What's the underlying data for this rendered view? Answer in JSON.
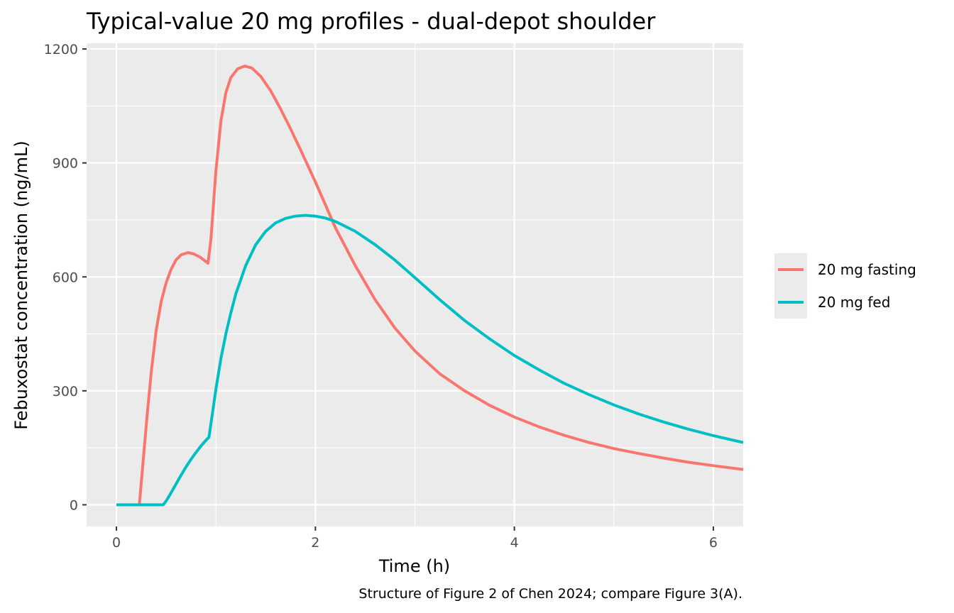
{
  "chart_data": {
    "type": "line",
    "title": "Typical-value 20 mg profiles - dual-depot shoulder",
    "xlabel": "Time (h)",
    "ylabel": "Febuxostat concentration (ng/mL)",
    "caption": "Structure of Figure 2 of Chen 2024; compare Figure 3(A).",
    "xlim": [
      -0.3,
      6.3
    ],
    "ylim": [
      -57,
      1215
    ],
    "x_ticks": [
      0,
      2,
      4,
      6
    ],
    "y_ticks": [
      0,
      300,
      600,
      900,
      1200
    ],
    "grid": true,
    "panel_background": "#EBEBEB",
    "legend_position": "right",
    "series": [
      {
        "name": "20 mg fasting",
        "color": "#F8766D",
        "points": [
          [
            0,
            0
          ],
          [
            0.23,
            0
          ],
          [
            0.27,
            120
          ],
          [
            0.31,
            240
          ],
          [
            0.35,
            350
          ],
          [
            0.4,
            460
          ],
          [
            0.45,
            535
          ],
          [
            0.5,
            585
          ],
          [
            0.55,
            620
          ],
          [
            0.6,
            645
          ],
          [
            0.65,
            658
          ],
          [
            0.72,
            664
          ],
          [
            0.78,
            660
          ],
          [
            0.84,
            652
          ],
          [
            0.9,
            640
          ],
          [
            0.92,
            636
          ],
          [
            0.95,
            700
          ],
          [
            1.0,
            880
          ],
          [
            1.05,
            1010
          ],
          [
            1.1,
            1085
          ],
          [
            1.15,
            1125
          ],
          [
            1.22,
            1148
          ],
          [
            1.29,
            1155
          ],
          [
            1.36,
            1150
          ],
          [
            1.45,
            1128
          ],
          [
            1.55,
            1090
          ],
          [
            1.65,
            1042
          ],
          [
            1.75,
            990
          ],
          [
            1.85,
            935
          ],
          [
            2.0,
            850
          ],
          [
            2.2,
            730
          ],
          [
            2.4,
            630
          ],
          [
            2.6,
            540
          ],
          [
            2.8,
            465
          ],
          [
            3.0,
            405
          ],
          [
            3.25,
            345
          ],
          [
            3.5,
            300
          ],
          [
            3.75,
            262
          ],
          [
            4.0,
            231
          ],
          [
            4.25,
            205
          ],
          [
            4.5,
            183
          ],
          [
            4.75,
            164
          ],
          [
            5.0,
            148
          ],
          [
            5.25,
            135
          ],
          [
            5.5,
            123
          ],
          [
            5.75,
            112
          ],
          [
            6.0,
            103
          ],
          [
            6.3,
            93
          ]
        ]
      },
      {
        "name": "20 mg fed",
        "color": "#00BFC4",
        "points": [
          [
            0,
            0
          ],
          [
            0.47,
            0
          ],
          [
            0.5,
            10
          ],
          [
            0.55,
            32
          ],
          [
            0.6,
            55
          ],
          [
            0.65,
            78
          ],
          [
            0.7,
            100
          ],
          [
            0.75,
            120
          ],
          [
            0.8,
            138
          ],
          [
            0.85,
            155
          ],
          [
            0.9,
            170
          ],
          [
            0.93,
            178
          ],
          [
            0.97,
            250
          ],
          [
            1.0,
            305
          ],
          [
            1.05,
            385
          ],
          [
            1.1,
            450
          ],
          [
            1.15,
            505
          ],
          [
            1.2,
            555
          ],
          [
            1.3,
            630
          ],
          [
            1.4,
            685
          ],
          [
            1.5,
            720
          ],
          [
            1.6,
            742
          ],
          [
            1.7,
            754
          ],
          [
            1.8,
            760
          ],
          [
            1.9,
            762
          ],
          [
            2.0,
            760
          ],
          [
            2.1,
            755
          ],
          [
            2.2,
            746
          ],
          [
            2.4,
            720
          ],
          [
            2.6,
            685
          ],
          [
            2.8,
            644
          ],
          [
            3.0,
            598
          ],
          [
            3.25,
            540
          ],
          [
            3.5,
            485
          ],
          [
            3.75,
            437
          ],
          [
            4.0,
            393
          ],
          [
            4.25,
            355
          ],
          [
            4.5,
            320
          ],
          [
            4.75,
            290
          ],
          [
            5.0,
            263
          ],
          [
            5.25,
            239
          ],
          [
            5.5,
            218
          ],
          [
            5.75,
            199
          ],
          [
            6.0,
            182
          ],
          [
            6.3,
            164
          ]
        ]
      }
    ]
  }
}
